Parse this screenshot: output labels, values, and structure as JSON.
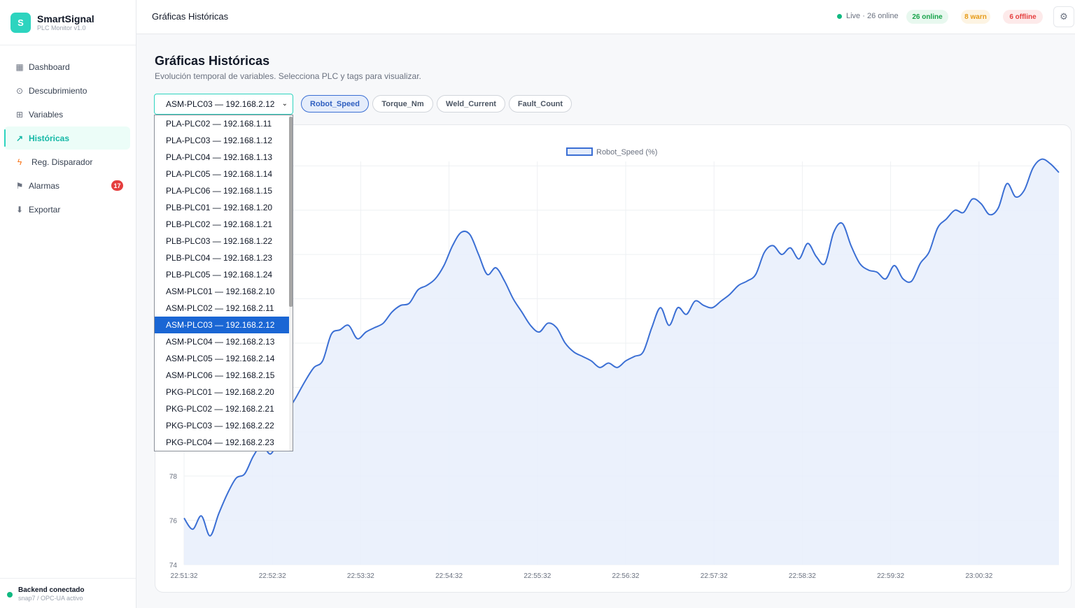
{
  "brand": {
    "name": "SmartSignal",
    "subtitle": "PLC Monitor v1.0",
    "logo_letter": "S"
  },
  "sidebar": {
    "items": [
      {
        "label": "Dashboard",
        "icon": "grid-icon"
      },
      {
        "label": "Descubrimiento",
        "icon": "target-icon"
      },
      {
        "label": "Variables",
        "icon": "table-icon"
      },
      {
        "label": "Históricas",
        "icon": "trend-icon",
        "active": true
      },
      {
        "label": "Reg. Disparador",
        "icon": "lightning-icon"
      },
      {
        "label": "Alarmas",
        "icon": "flag-icon",
        "badge": "17"
      },
      {
        "label": "Exportar",
        "icon": "download-icon"
      }
    ],
    "backend": {
      "title": "Backend conectado",
      "subtitle": "snap7 / OPC-UA activo"
    }
  },
  "topbar": {
    "title": "Gráficas Históricas",
    "live_text": "Live · 26 online",
    "online_pill": "26 online",
    "warn_pill": "8 warn",
    "offline_pill": "6 offline"
  },
  "main": {
    "title": "Gráficas Históricas",
    "subtitle": "Evolución temporal de variables. Selecciona PLC y tags para visualizar.",
    "selected_plc": "ASM-PLC03 — 192.168.2.12",
    "tags": [
      {
        "label": "Robot_Speed",
        "active": true
      },
      {
        "label": "Torque_Nm",
        "active": false
      },
      {
        "label": "Weld_Current",
        "active": false
      },
      {
        "label": "Fault_Count",
        "active": false
      }
    ]
  },
  "dropdown": {
    "options": [
      "PLA-PLC02 — 192.168.1.11",
      "PLA-PLC03 — 192.168.1.12",
      "PLA-PLC04 — 192.168.1.13",
      "PLA-PLC05 — 192.168.1.14",
      "PLA-PLC06 — 192.168.1.15",
      "PLB-PLC01 — 192.168.1.20",
      "PLB-PLC02 — 192.168.1.21",
      "PLB-PLC03 — 192.168.1.22",
      "PLB-PLC04 — 192.168.1.23",
      "PLB-PLC05 — 192.168.1.24",
      "ASM-PLC01 — 192.168.2.10",
      "ASM-PLC02 — 192.168.2.11",
      "ASM-PLC03 — 192.168.2.12",
      "ASM-PLC04 — 192.168.2.13",
      "ASM-PLC05 — 192.168.2.14",
      "ASM-PLC06 — 192.168.2.15",
      "PKG-PLC01 — 192.168.2.20",
      "PKG-PLC02 — 192.168.2.21",
      "PKG-PLC03 — 192.168.2.22",
      "PKG-PLC04 — 192.168.2.23"
    ],
    "selected_index": 12
  },
  "colors": {
    "accent": "#2dd4bf",
    "line": "#3b6fd4",
    "fill": "#e8eefb"
  },
  "chart_data": {
    "type": "area",
    "legend": "Robot_Speed (%)",
    "legend_position": "top-center",
    "grid": true,
    "y_ticks": [
      74,
      76,
      78
    ],
    "ylim": [
      74,
      92.2
    ],
    "x_ticks": [
      "22:51:32",
      "22:52:32",
      "22:53:32",
      "22:54:32",
      "22:55:32",
      "22:56:32",
      "22:57:32",
      "22:58:32",
      "22:59:32",
      "23:00:32"
    ],
    "series": [
      {
        "name": "Robot_Speed (%)",
        "points": [
          [
            0,
            76.1
          ],
          [
            4,
            75.6
          ],
          [
            8,
            76.2
          ],
          [
            12,
            75.3
          ],
          [
            16,
            76.3
          ],
          [
            20,
            77.2
          ],
          [
            24,
            77.9
          ],
          [
            28,
            78.1
          ],
          [
            32,
            78.9
          ],
          [
            36,
            79.4
          ],
          [
            40,
            79.0
          ],
          [
            44,
            79.8
          ],
          [
            48,
            80.9
          ],
          [
            52,
            81.6
          ],
          [
            56,
            82.3
          ],
          [
            60,
            82.9
          ],
          [
            64,
            83.2
          ],
          [
            68,
            84.4
          ],
          [
            72,
            84.6
          ],
          [
            76,
            84.8
          ],
          [
            80,
            84.2
          ],
          [
            84,
            84.5
          ],
          [
            88,
            84.7
          ],
          [
            92,
            84.9
          ],
          [
            96,
            85.4
          ],
          [
            100,
            85.7
          ],
          [
            104,
            85.8
          ],
          [
            108,
            86.4
          ],
          [
            112,
            86.6
          ],
          [
            116,
            86.9
          ],
          [
            120,
            87.5
          ],
          [
            124,
            88.4
          ],
          [
            128,
            89.0
          ],
          [
            132,
            88.9
          ],
          [
            136,
            88.0
          ],
          [
            140,
            87.1
          ],
          [
            144,
            87.4
          ],
          [
            148,
            86.8
          ],
          [
            152,
            86.0
          ],
          [
            156,
            85.4
          ],
          [
            160,
            84.8
          ],
          [
            164,
            84.5
          ],
          [
            168,
            84.9
          ],
          [
            172,
            84.7
          ],
          [
            176,
            84.0
          ],
          [
            180,
            83.6
          ],
          [
            184,
            83.4
          ],
          [
            188,
            83.2
          ],
          [
            192,
            82.9
          ],
          [
            196,
            83.1
          ],
          [
            200,
            82.9
          ],
          [
            204,
            83.2
          ],
          [
            208,
            83.4
          ],
          [
            212,
            83.6
          ],
          [
            216,
            84.7
          ],
          [
            220,
            85.6
          ],
          [
            224,
            84.8
          ],
          [
            228,
            85.6
          ],
          [
            232,
            85.3
          ],
          [
            236,
            85.9
          ],
          [
            240,
            85.7
          ],
          [
            244,
            85.6
          ],
          [
            248,
            85.9
          ],
          [
            252,
            86.2
          ],
          [
            256,
            86.6
          ],
          [
            260,
            86.8
          ],
          [
            264,
            87.1
          ],
          [
            268,
            88.1
          ],
          [
            272,
            88.4
          ],
          [
            276,
            88.0
          ],
          [
            280,
            88.3
          ],
          [
            284,
            87.8
          ],
          [
            288,
            88.5
          ],
          [
            292,
            87.9
          ],
          [
            296,
            87.6
          ],
          [
            300,
            89.0
          ],
          [
            304,
            89.4
          ],
          [
            308,
            88.4
          ],
          [
            312,
            87.6
          ],
          [
            316,
            87.3
          ],
          [
            320,
            87.2
          ],
          [
            324,
            86.9
          ],
          [
            328,
            87.5
          ],
          [
            332,
            86.9
          ],
          [
            336,
            86.8
          ],
          [
            340,
            87.6
          ],
          [
            344,
            88.1
          ],
          [
            348,
            89.2
          ],
          [
            352,
            89.6
          ],
          [
            356,
            90.0
          ],
          [
            360,
            89.9
          ],
          [
            364,
            90.5
          ],
          [
            368,
            90.3
          ],
          [
            372,
            89.8
          ],
          [
            376,
            90.1
          ],
          [
            380,
            91.2
          ],
          [
            384,
            90.6
          ],
          [
            388,
            90.9
          ],
          [
            392,
            91.9
          ],
          [
            396,
            92.3
          ],
          [
            400,
            92.1
          ],
          [
            404,
            91.7
          ]
        ]
      }
    ]
  }
}
